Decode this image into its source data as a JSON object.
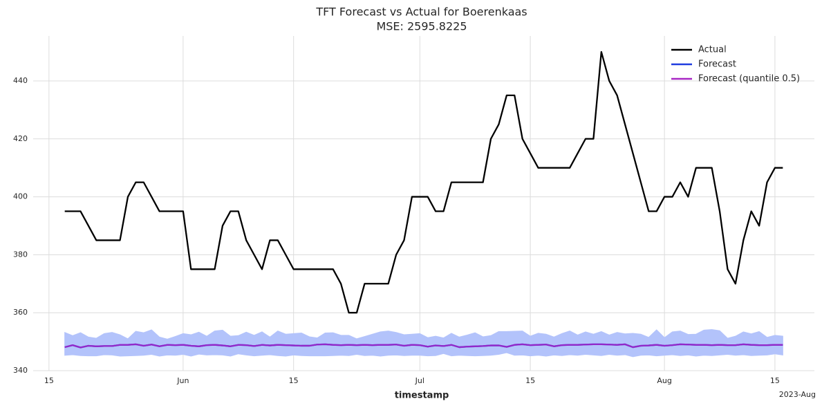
{
  "chart_data": {
    "type": "line",
    "title": "TFT Forecast vs Actual for Boerenkaas",
    "subtitle": "MSE: 2595.8225",
    "x_label": "timestamp",
    "x_offset_label": "2023-Aug",
    "x": [
      "2023-05-17",
      "2023-05-18",
      "2023-05-19",
      "2023-05-20",
      "2023-05-21",
      "2023-05-22",
      "2023-05-23",
      "2023-05-24",
      "2023-05-25",
      "2023-05-26",
      "2023-05-27",
      "2023-05-28",
      "2023-05-29",
      "2023-05-30",
      "2023-05-31",
      "2023-06-01",
      "2023-06-02",
      "2023-06-03",
      "2023-06-04",
      "2023-06-05",
      "2023-06-06",
      "2023-06-07",
      "2023-06-08",
      "2023-06-09",
      "2023-06-10",
      "2023-06-11",
      "2023-06-12",
      "2023-06-13",
      "2023-06-14",
      "2023-06-15",
      "2023-06-16",
      "2023-06-17",
      "2023-06-18",
      "2023-06-19",
      "2023-06-20",
      "2023-06-21",
      "2023-06-22",
      "2023-06-23",
      "2023-06-24",
      "2023-06-25",
      "2023-06-26",
      "2023-06-27",
      "2023-06-28",
      "2023-06-29",
      "2023-06-30",
      "2023-07-01",
      "2023-07-02",
      "2023-07-03",
      "2023-07-04",
      "2023-07-05",
      "2023-07-06",
      "2023-07-07",
      "2023-07-08",
      "2023-07-09",
      "2023-07-10",
      "2023-07-11",
      "2023-07-12",
      "2023-07-13",
      "2023-07-14",
      "2023-07-15",
      "2023-07-16",
      "2023-07-17",
      "2023-07-18",
      "2023-07-19",
      "2023-07-20",
      "2023-07-21",
      "2023-07-22",
      "2023-07-23",
      "2023-07-24",
      "2023-07-25",
      "2023-07-26",
      "2023-07-27",
      "2023-07-28",
      "2023-07-29",
      "2023-07-30",
      "2023-07-31",
      "2023-08-01",
      "2023-08-02",
      "2023-08-03",
      "2023-08-04",
      "2023-08-05",
      "2023-08-06",
      "2023-08-07",
      "2023-08-08",
      "2023-08-09",
      "2023-08-10",
      "2023-08-11",
      "2023-08-12",
      "2023-08-13",
      "2023-08-14",
      "2023-08-15",
      "2023-08-16"
    ],
    "series": [
      {
        "name": "Actual",
        "color": "#000000",
        "values": [
          395,
          395,
          395,
          390,
          385,
          385,
          385,
          385,
          400,
          405,
          405,
          400,
          395,
          395,
          395,
          395,
          375,
          375,
          375,
          375,
          390,
          395,
          395,
          385,
          380,
          375,
          385,
          385,
          380,
          375,
          375,
          375,
          375,
          375,
          375,
          370,
          360,
          360,
          370,
          370,
          370,
          370,
          380,
          385,
          400,
          400,
          400,
          395,
          395,
          405,
          405,
          405,
          405,
          405,
          420,
          425,
          435,
          435,
          420,
          415,
          410,
          410,
          410,
          410,
          410,
          415,
          420,
          420,
          450,
          440,
          435,
          425,
          415,
          405,
          395,
          395,
          400,
          400,
          405,
          400,
          410,
          410,
          410,
          395,
          375,
          370,
          385,
          395,
          390,
          405,
          410,
          410
        ]
      },
      {
        "name": "Forecast",
        "color": "#1f3be0",
        "band_color": "#b3c3fb",
        "values": [
          348.1,
          348.8,
          348.0,
          348.6,
          348.4,
          348.5,
          348.5,
          348.9,
          348.9,
          349.1,
          348.6,
          349.0,
          348.4,
          348.9,
          348.8,
          348.9,
          348.6,
          348.4,
          348.8,
          348.9,
          348.7,
          348.4,
          348.9,
          348.8,
          348.5,
          348.9,
          348.7,
          348.9,
          348.8,
          348.7,
          348.6,
          348.6,
          349.0,
          349.1,
          348.9,
          348.8,
          348.9,
          348.8,
          348.9,
          348.8,
          348.9,
          348.9,
          349.0,
          348.6,
          348.9,
          348.8,
          348.3,
          348.7,
          348.5,
          348.9,
          348.1,
          348.3,
          348.4,
          348.5,
          348.7,
          348.7,
          348.2,
          348.9,
          349.1,
          348.8,
          348.9,
          349.0,
          348.4,
          348.8,
          348.9,
          348.9,
          349.0,
          349.1,
          349.1,
          349.0,
          348.9,
          349.1,
          348.1,
          348.6,
          348.7,
          348.9,
          348.6,
          348.8,
          349.1,
          349.0,
          348.9,
          348.9,
          348.8,
          348.9,
          348.8,
          348.8,
          349.1,
          348.9,
          348.8,
          348.8,
          348.9,
          348.9
        ],
        "upper": [
          353.2,
          352.1,
          353.1,
          351.6,
          351.2,
          352.8,
          353.2,
          352.4,
          351.0,
          353.6,
          353.1,
          354.1,
          351.6,
          350.9,
          351.8,
          352.8,
          352.4,
          353.3,
          351.9,
          353.7,
          354.0,
          351.9,
          352.1,
          353.3,
          352.2,
          353.4,
          351.6,
          353.7,
          352.6,
          352.8,
          353.0,
          351.7,
          351.3,
          353.0,
          353.1,
          352.2,
          352.2,
          351.0,
          351.8,
          352.6,
          353.4,
          353.7,
          353.2,
          352.4,
          352.6,
          352.8,
          351.4,
          351.9,
          351.3,
          352.9,
          351.6,
          352.3,
          353.1,
          351.7,
          352.1,
          353.5,
          353.5,
          353.6,
          353.7,
          351.9,
          352.9,
          352.6,
          351.6,
          352.8,
          353.7,
          352.3,
          353.4,
          352.6,
          353.5,
          352.3,
          353.2,
          352.7,
          352.9,
          352.6,
          351.5,
          354.1,
          351.4,
          353.4,
          353.7,
          352.5,
          352.6,
          354.0,
          354.2,
          353.8,
          351.2,
          351.9,
          353.4,
          352.7,
          353.5,
          351.5,
          352.2,
          351.9
        ],
        "lower": [
          345.3,
          345.5,
          345.2,
          345.1,
          345.1,
          345.5,
          345.4,
          345.0,
          345.1,
          345.2,
          345.3,
          345.6,
          345.0,
          345.4,
          345.3,
          345.6,
          345.0,
          345.7,
          345.4,
          345.5,
          345.4,
          345.0,
          345.8,
          345.4,
          345.1,
          345.3,
          345.5,
          345.2,
          345.0,
          345.4,
          345.2,
          345.1,
          345.1,
          345.1,
          345.2,
          345.3,
          345.2,
          345.6,
          345.2,
          345.3,
          345.0,
          345.3,
          345.4,
          345.2,
          345.3,
          345.3,
          345.1,
          345.2,
          345.9,
          345.1,
          345.3,
          345.2,
          345.1,
          345.2,
          345.3,
          345.6,
          346.2,
          345.3,
          345.4,
          345.1,
          345.3,
          345.0,
          345.4,
          345.2,
          345.5,
          345.3,
          345.6,
          345.4,
          345.2,
          345.6,
          345.3,
          345.5,
          344.8,
          345.3,
          345.4,
          345.1,
          345.3,
          345.5,
          345.2,
          345.4,
          345.0,
          345.3,
          345.2,
          345.4,
          345.6,
          345.3,
          345.5,
          345.2,
          345.3,
          345.4,
          345.8,
          345.4
        ]
      },
      {
        "name": "Forecast (quantile 0.5)",
        "color": "#a826c4",
        "values": [
          348.1,
          348.8,
          348.0,
          348.6,
          348.4,
          348.5,
          348.5,
          348.9,
          348.9,
          349.1,
          348.6,
          349.0,
          348.4,
          348.9,
          348.8,
          348.9,
          348.6,
          348.4,
          348.8,
          348.9,
          348.7,
          348.4,
          348.9,
          348.8,
          348.5,
          348.9,
          348.7,
          348.9,
          348.8,
          348.7,
          348.6,
          348.6,
          349.0,
          349.1,
          348.9,
          348.8,
          348.9,
          348.8,
          348.9,
          348.8,
          348.9,
          348.9,
          349.0,
          348.6,
          348.9,
          348.8,
          348.3,
          348.7,
          348.5,
          348.9,
          348.1,
          348.3,
          348.4,
          348.5,
          348.7,
          348.7,
          348.2,
          348.9,
          349.1,
          348.8,
          348.9,
          349.0,
          348.4,
          348.8,
          348.9,
          348.9,
          349.0,
          349.1,
          349.1,
          349.0,
          348.9,
          349.1,
          348.1,
          348.6,
          348.7,
          348.9,
          348.6,
          348.8,
          349.1,
          349.0,
          348.9,
          348.9,
          348.8,
          348.9,
          348.8,
          348.8,
          349.1,
          348.9,
          348.8,
          348.8,
          348.9,
          348.9
        ]
      }
    ],
    "xlim": [
      "2023-05-13",
      "2023-08-20"
    ],
    "xticks": [
      {
        "value": "2023-05-15",
        "label": "15"
      },
      {
        "value": "2023-06-01",
        "label": "Jun"
      },
      {
        "value": "2023-06-15",
        "label": "15"
      },
      {
        "value": "2023-07-01",
        "label": "Jul"
      },
      {
        "value": "2023-07-15",
        "label": "15"
      },
      {
        "value": "2023-08-01",
        "label": "Aug"
      },
      {
        "value": "2023-08-15",
        "label": "15"
      }
    ],
    "ylim": [
      340,
      455.5
    ],
    "yticks": [
      340,
      360,
      380,
      400,
      420,
      440
    ],
    "grid": true,
    "legend": "upper right"
  }
}
